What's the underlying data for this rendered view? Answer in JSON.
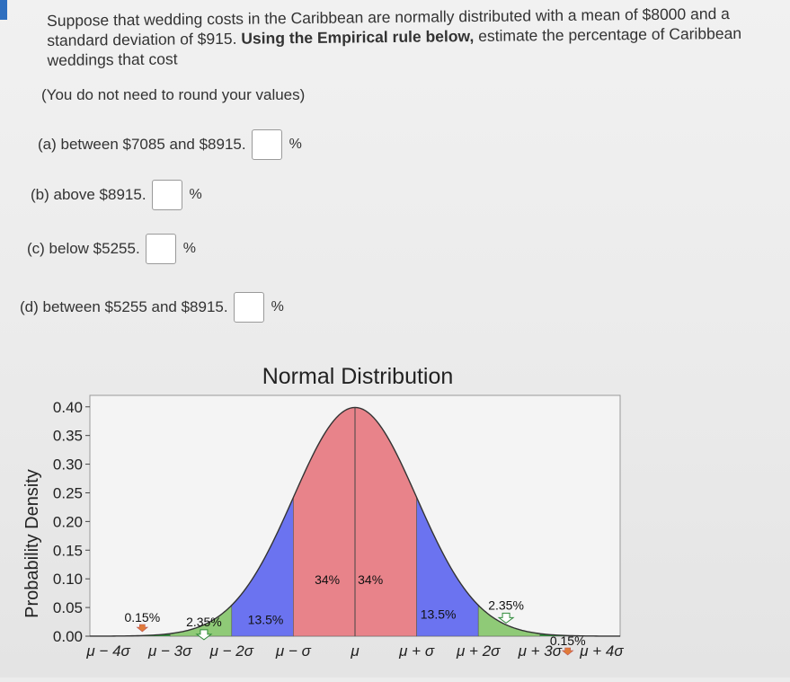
{
  "question": {
    "text_before_bold": "Suppose that wedding costs in the Caribbean are normally distributed with a mean of $8000 and a standard deviation of $915.",
    "bold_text": "Using the Empirical rule below,",
    "text_after_bold": "estimate the percentage of Caribbean weddings that cost",
    "note": "(You do not need to round your values)"
  },
  "parts": [
    {
      "label": "(a) between $7085 and $8915.",
      "value": "",
      "unit": "%"
    },
    {
      "label": "(b) above $8915.",
      "value": "",
      "unit": "%"
    },
    {
      "label": "(c) below $5255.",
      "value": "",
      "unit": "%"
    },
    {
      "label": "(d) between $5255 and $8915.",
      "value": "",
      "unit": "%"
    }
  ],
  "colors": {
    "center_region": "#e8838a",
    "one_to_two_sigma": "#6b73f0",
    "two_to_three_sigma": "#8fca77",
    "tail": "#2f8a3a"
  },
  "chart_data": {
    "type": "area",
    "title": "Normal Distribution",
    "ylabel": "Probability Density",
    "xlabel": "",
    "ylim": [
      0,
      0.42
    ],
    "xlim": [
      -4.3,
      4.3
    ],
    "y_ticks": [
      "0.00",
      "0.05",
      "0.10",
      "0.15",
      "0.20",
      "0.25",
      "0.30",
      "0.35",
      "0.40"
    ],
    "x_ticks": [
      "μ − 4σ",
      "μ − 3σ",
      "μ − 2σ",
      "μ − σ",
      "μ",
      "μ + σ",
      "μ + 2σ",
      "μ + 3σ",
      "μ + 4σ"
    ],
    "x_tick_values": [
      -4,
      -3,
      -2,
      -1,
      0,
      1,
      2,
      3,
      4
    ],
    "regions": [
      {
        "from": -3,
        "to": -2,
        "percent": "2.35%",
        "color": "#8fca77"
      },
      {
        "from": -2,
        "to": -1,
        "percent": "13.5%",
        "color": "#6b73f0"
      },
      {
        "from": -1,
        "to": 0,
        "percent": "34%",
        "color": "#e8838a"
      },
      {
        "from": 0,
        "to": 1,
        "percent": "34%",
        "color": "#e8838a"
      },
      {
        "from": 1,
        "to": 2,
        "percent": "13.5%",
        "color": "#6b73f0"
      },
      {
        "from": 2,
        "to": 3,
        "percent": "2.35%",
        "color": "#8fca77"
      }
    ],
    "tails": [
      {
        "side": "left",
        "percent": "0.15%"
      },
      {
        "side": "right",
        "percent": "0.15%"
      }
    ],
    "grid": false
  }
}
